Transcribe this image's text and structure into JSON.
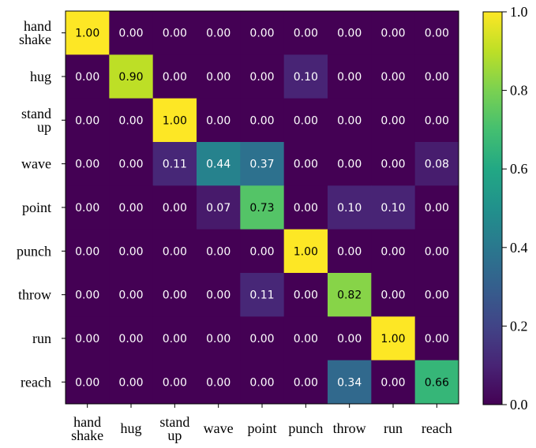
{
  "chart_data": {
    "type": "heatmap",
    "title": "",
    "xlabel": "",
    "ylabel": "",
    "rows": [
      "hand shake",
      "hug",
      "stand up",
      "wave",
      "point",
      "punch",
      "throw",
      "run",
      "reach"
    ],
    "cols": [
      "hand shake",
      "hug",
      "stand up",
      "wave",
      "point",
      "punch",
      "throw",
      "run",
      "reach"
    ],
    "row_labels": [
      [
        "hand",
        "shake"
      ],
      [
        "hug"
      ],
      [
        "stand",
        "up"
      ],
      [
        "wave"
      ],
      [
        "point"
      ],
      [
        "punch"
      ],
      [
        "throw"
      ],
      [
        "run"
      ],
      [
        "reach"
      ]
    ],
    "col_labels": [
      [
        "hand",
        "shake"
      ],
      [
        "hug"
      ],
      [
        "stand",
        "up"
      ],
      [
        "wave"
      ],
      [
        "point"
      ],
      [
        "punch"
      ],
      [
        "throw"
      ],
      [
        "run"
      ],
      [
        "reach"
      ]
    ],
    "values": [
      [
        1.0,
        0.0,
        0.0,
        0.0,
        0.0,
        0.0,
        0.0,
        0.0,
        0.0
      ],
      [
        0.0,
        0.9,
        0.0,
        0.0,
        0.0,
        0.1,
        0.0,
        0.0,
        0.0
      ],
      [
        0.0,
        0.0,
        1.0,
        0.0,
        0.0,
        0.0,
        0.0,
        0.0,
        0.0
      ],
      [
        0.0,
        0.0,
        0.11,
        0.44,
        0.37,
        0.0,
        0.0,
        0.0,
        0.08
      ],
      [
        0.0,
        0.0,
        0.0,
        0.07,
        0.73,
        0.0,
        0.1,
        0.1,
        0.0
      ],
      [
        0.0,
        0.0,
        0.0,
        0.0,
        0.0,
        1.0,
        0.0,
        0.0,
        0.0
      ],
      [
        0.0,
        0.0,
        0.0,
        0.0,
        0.11,
        0.0,
        0.82,
        0.0,
        0.0
      ],
      [
        0.0,
        0.0,
        0.0,
        0.0,
        0.0,
        0.0,
        0.0,
        1.0,
        0.0
      ],
      [
        0.0,
        0.0,
        0.0,
        0.0,
        0.0,
        0.0,
        0.34,
        0.0,
        0.66
      ]
    ],
    "value_format": "0.00",
    "colormap": "viridis",
    "colorbar": {
      "range": [
        0.0,
        1.0
      ],
      "ticks": [
        "0.0",
        "0.2",
        "0.4",
        "0.6",
        "0.8",
        "1.0"
      ],
      "position": "right"
    },
    "grid": false,
    "text_colors": {
      "dark_cell": "#ffffff",
      "light_cell": "#000000"
    }
  }
}
